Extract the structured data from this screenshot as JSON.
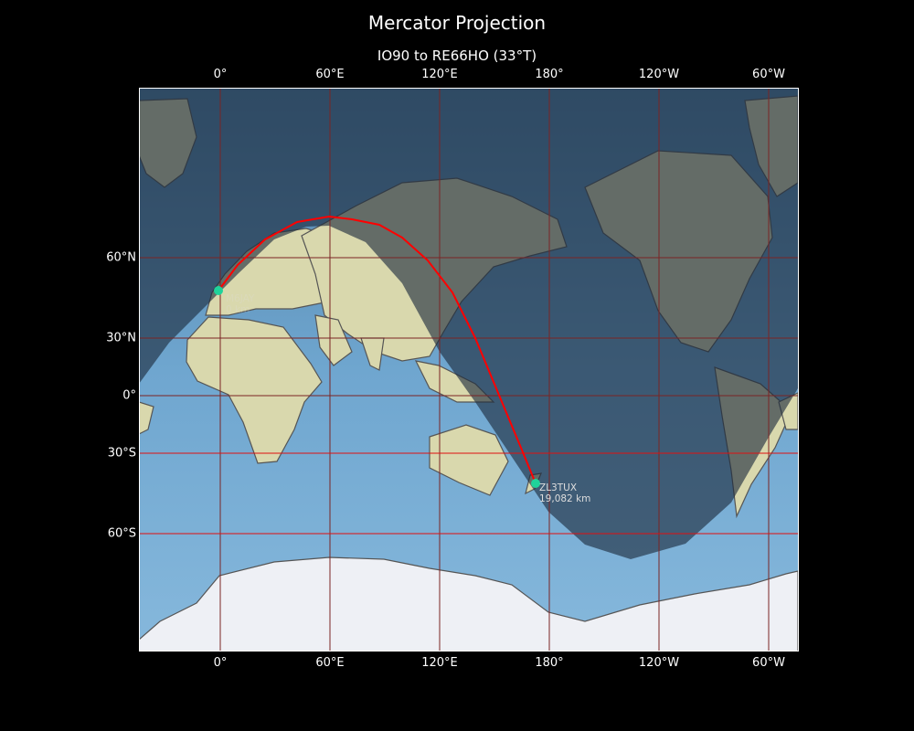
{
  "title": "Mercator Projection",
  "subtitle": "IO90 to RE66HO (33°T)",
  "lon_ticks": [
    "0°",
    "60°E",
    "120°E",
    "180°",
    "120°W",
    "60°W"
  ],
  "lat_ticks": [
    "60°N",
    "30°N",
    "0°",
    "30°S",
    "60°S"
  ],
  "source": {
    "label": "M6JAY",
    "distance": "0 km",
    "lat": 50.9,
    "lon": -1.4
  },
  "destination": {
    "label": "ZL3TUX",
    "distance": "19,082 km",
    "lat": -43.7,
    "lon": 172.6
  },
  "colors": {
    "path": "#ff0000",
    "marker": "#1fd39a",
    "grid": "#8b1a1a",
    "highlight_lat_lines": "#e01010",
    "night": "#1c2a3c"
  },
  "highlight_lat_lines": [
    "30°S",
    "60°S"
  ]
}
